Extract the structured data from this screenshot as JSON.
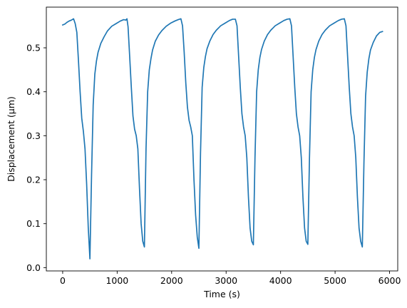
{
  "chart_data": {
    "type": "line",
    "title": "",
    "xlabel": "Time (s)",
    "ylabel": "Displacement (μm)",
    "xlim": [
      -300,
      6150
    ],
    "ylim": [
      -0.0075,
      0.5925
    ],
    "xticks": [
      0,
      1000,
      2000,
      3000,
      4000,
      5000,
      6000
    ],
    "xtick_labels": [
      "0",
      "1000",
      "2000",
      "3000",
      "4000",
      "5000",
      "6000"
    ],
    "yticks": [
      0.0,
      0.1,
      0.2,
      0.3,
      0.4,
      0.5
    ],
    "ytick_labels": [
      "0.0",
      "0.1",
      "0.2",
      "0.3",
      "0.4",
      "0.5"
    ],
    "grid": false,
    "legend": "none",
    "series": [
      {
        "color": "#1f77b4",
        "x": [
          0,
          40,
          80,
          120,
          160,
          200,
          230,
          260,
          290,
          320,
          350,
          380,
          410,
          440,
          470,
          500,
          530,
          560,
          590,
          620,
          650,
          700,
          760,
          820,
          900,
          980,
          1060,
          1120,
          1160,
          1180,
          1200,
          1230,
          1260,
          1290,
          1320,
          1350,
          1380,
          1410,
          1440,
          1470,
          1500,
          1530,
          1560,
          1590,
          1620,
          1650,
          1700,
          1760,
          1820,
          1900,
          1980,
          2060,
          2120,
          2170,
          2200,
          2230,
          2260,
          2290,
          2320,
          2350,
          2380,
          2410,
          2440,
          2470,
          2500,
          2530,
          2560,
          2590,
          2620,
          2650,
          2700,
          2760,
          2820,
          2900,
          2980,
          3060,
          3120,
          3170,
          3200,
          3230,
          3260,
          3290,
          3320,
          3350,
          3380,
          3410,
          3440,
          3470,
          3500,
          3530,
          3560,
          3590,
          3620,
          3650,
          3700,
          3760,
          3820,
          3900,
          3980,
          4060,
          4120,
          4170,
          4200,
          4230,
          4260,
          4290,
          4320,
          4350,
          4380,
          4410,
          4440,
          4470,
          4500,
          4530,
          4560,
          4590,
          4620,
          4650,
          4700,
          4760,
          4820,
          4900,
          4980,
          5060,
          5120,
          5170,
          5200,
          5230,
          5260,
          5290,
          5320,
          5350,
          5380,
          5410,
          5440,
          5470,
          5500,
          5530,
          5560,
          5590,
          5620,
          5650,
          5700,
          5760,
          5820,
          5870
        ],
        "y": [
          0.552,
          0.554,
          0.558,
          0.561,
          0.563,
          0.566,
          0.555,
          0.535,
          0.47,
          0.4,
          0.34,
          0.31,
          0.27,
          0.19,
          0.09,
          0.02,
          0.21,
          0.37,
          0.44,
          0.47,
          0.49,
          0.51,
          0.525,
          0.538,
          0.549,
          0.555,
          0.561,
          0.564,
          0.563,
          0.566,
          0.548,
          0.48,
          0.41,
          0.345,
          0.315,
          0.3,
          0.27,
          0.18,
          0.1,
          0.06,
          0.047,
          0.27,
          0.4,
          0.45,
          0.475,
          0.495,
          0.515,
          0.529,
          0.539,
          0.549,
          0.556,
          0.561,
          0.564,
          0.566,
          0.55,
          0.49,
          0.42,
          0.365,
          0.335,
          0.32,
          0.3,
          0.2,
          0.12,
          0.07,
          0.044,
          0.26,
          0.41,
          0.455,
          0.48,
          0.498,
          0.515,
          0.53,
          0.54,
          0.55,
          0.556,
          0.562,
          0.565,
          0.565,
          0.55,
          0.48,
          0.41,
          0.35,
          0.32,
          0.3,
          0.25,
          0.16,
          0.09,
          0.06,
          0.052,
          0.25,
          0.4,
          0.45,
          0.478,
          0.496,
          0.515,
          0.53,
          0.54,
          0.55,
          0.556,
          0.562,
          0.565,
          0.566,
          0.55,
          0.48,
          0.41,
          0.35,
          0.32,
          0.3,
          0.25,
          0.16,
          0.09,
          0.06,
          0.053,
          0.25,
          0.4,
          0.45,
          0.478,
          0.496,
          0.515,
          0.53,
          0.54,
          0.55,
          0.556,
          0.562,
          0.565,
          0.566,
          0.55,
          0.48,
          0.41,
          0.35,
          0.32,
          0.3,
          0.25,
          0.16,
          0.09,
          0.06,
          0.047,
          0.24,
          0.39,
          0.445,
          0.475,
          0.495,
          0.512,
          0.527,
          0.535,
          0.537
        ]
      }
    ]
  }
}
